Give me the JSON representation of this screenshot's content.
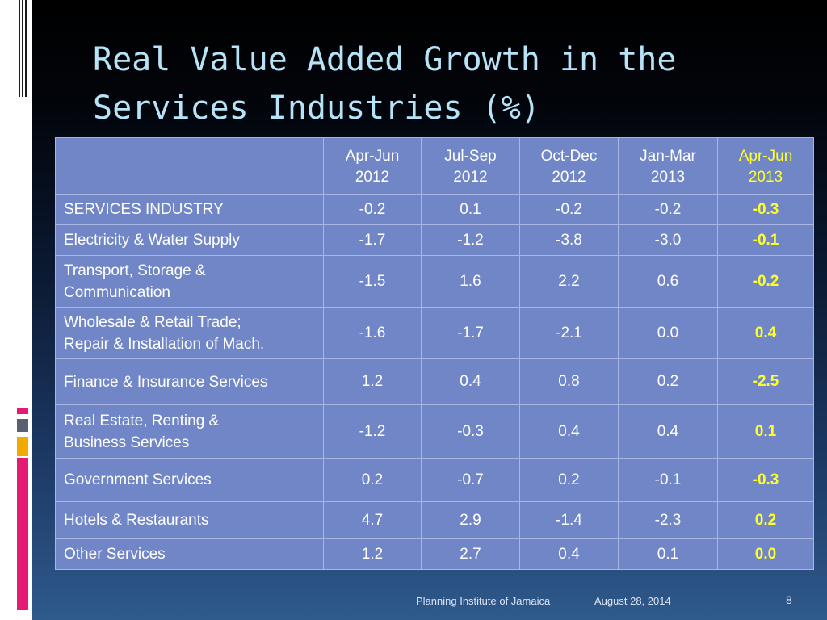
{
  "slide": {
    "title": "Real Value Added Growth in the Services Industries (%)",
    "footer": {
      "source": "Planning Institute of Jamaica",
      "date": "August 28, 2014",
      "page_number": "8"
    }
  },
  "colors": {
    "highlight_text": "#ffff2b",
    "table_background": "#7186c6",
    "title_text": "#b7e3f7"
  },
  "table": {
    "columns": [
      {
        "line1": "Apr-Jun",
        "line2": "2012",
        "highlight": false
      },
      {
        "line1": "Jul-Sep",
        "line2": "2012",
        "highlight": false
      },
      {
        "line1": "Oct-Dec",
        "line2": "2012",
        "highlight": false
      },
      {
        "line1": "Jan-Mar",
        "line2": "2013",
        "highlight": false
      },
      {
        "line1": "Apr-Jun",
        "line2": "2013",
        "highlight": true
      }
    ],
    "rows": [
      {
        "label": [
          "SERVICES INDUSTRY"
        ],
        "values": [
          "-0.2",
          "0.1",
          "-0.2",
          "-0.2",
          "-0.3"
        ]
      },
      {
        "label": [
          "Electricity & Water Supply"
        ],
        "values": [
          "-1.7",
          "-1.2",
          "-3.8",
          "-3.0",
          "-0.1"
        ]
      },
      {
        "label": [
          "Transport, Storage &",
          "Communication"
        ],
        "values": [
          "-1.5",
          "1.6",
          "2.2",
          "0.6",
          "-0.2"
        ]
      },
      {
        "label": [
          "Wholesale & Retail Trade;",
          "Repair & Installation of Mach."
        ],
        "values": [
          "-1.6",
          "-1.7",
          "-2.1",
          "0.0",
          "0.4"
        ]
      },
      {
        "label": [
          "Finance & Insurance Services"
        ],
        "values": [
          "1.2",
          "0.4",
          "0.8",
          "0.2",
          "-2.5"
        ]
      },
      {
        "label": [
          "Real Estate, Renting &",
          "Business Services"
        ],
        "values": [
          "-1.2",
          "-0.3",
          "0.4",
          "0.4",
          "0.1"
        ]
      },
      {
        "label": [
          "Government Services"
        ],
        "values": [
          "0.2",
          "-0.7",
          "0.2",
          "-0.1",
          "-0.3"
        ]
      },
      {
        "label": [
          "Hotels & Restaurants"
        ],
        "values": [
          "4.7",
          "2.9",
          "-1.4",
          "-2.3",
          "0.2"
        ]
      },
      {
        "label": [
          "Other Services"
        ],
        "values": [
          "1.2",
          "2.7",
          "0.4",
          "0.1",
          "0.0"
        ]
      }
    ]
  }
}
